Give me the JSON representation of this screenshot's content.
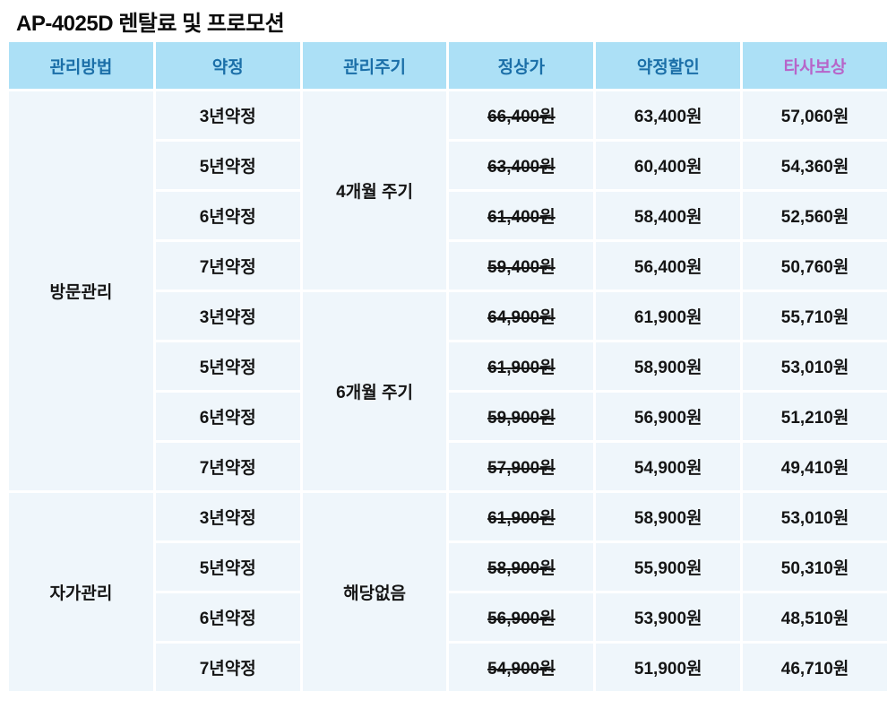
{
  "title": "AP-4025D 렌탈료 및 프로모션",
  "colors": {
    "header_background": "#ACE0F6",
    "header_text": "#1B6FA8",
    "header_reward_text": "#B765C9",
    "cell_background": "#EFF6FB",
    "body_text": "#151515",
    "reward_text": "#C072D2",
    "page_background": "#FFFFFF"
  },
  "table": {
    "headers": [
      "관리방법",
      "약정",
      "관리주기",
      "정상가",
      "약정할인",
      "타사보상"
    ],
    "groups": [
      {
        "method": "방문관리",
        "cycles": [
          {
            "cycle": "4개월 주기",
            "rows": [
              {
                "term": "3년약정",
                "regular": "66,400원",
                "discount": "63,400원",
                "reward": "57,060원"
              },
              {
                "term": "5년약정",
                "regular": "63,400원",
                "discount": "60,400원",
                "reward": "54,360원"
              },
              {
                "term": "6년약정",
                "regular": "61,400원",
                "discount": "58,400원",
                "reward": "52,560원"
              },
              {
                "term": "7년약정",
                "regular": "59,400원",
                "discount": "56,400원",
                "reward": "50,760원"
              }
            ]
          },
          {
            "cycle": "6개월 주기",
            "rows": [
              {
                "term": "3년약정",
                "regular": "64,900원",
                "discount": "61,900원",
                "reward": "55,710원"
              },
              {
                "term": "5년약정",
                "regular": "61,900원",
                "discount": "58,900원",
                "reward": "53,010원"
              },
              {
                "term": "6년약정",
                "regular": "59,900원",
                "discount": "56,900원",
                "reward": "51,210원"
              },
              {
                "term": "7년약정",
                "regular": "57,900원",
                "discount": "54,900원",
                "reward": "49,410원"
              }
            ]
          }
        ]
      },
      {
        "method": "자가관리",
        "cycles": [
          {
            "cycle": "해당없음",
            "rows": [
              {
                "term": "3년약정",
                "regular": "61,900원",
                "discount": "58,900원",
                "reward": "53,010원"
              },
              {
                "term": "5년약정",
                "regular": "58,900원",
                "discount": "55,900원",
                "reward": "50,310원"
              },
              {
                "term": "6년약정",
                "regular": "56,900원",
                "discount": "53,900원",
                "reward": "48,510원"
              },
              {
                "term": "7년약정",
                "regular": "54,900원",
                "discount": "51,900원",
                "reward": "46,710원"
              }
            ]
          }
        ]
      }
    ]
  }
}
